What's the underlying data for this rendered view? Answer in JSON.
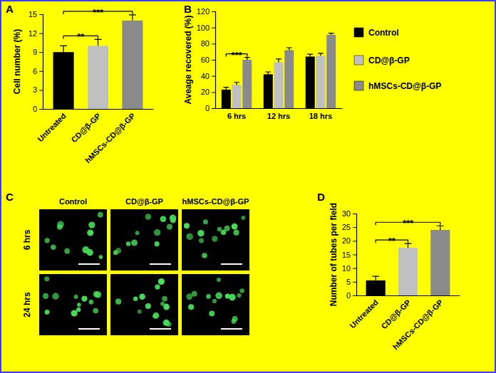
{
  "chart_data": [
    {
      "type": "bar",
      "panel": "A",
      "y_label": "Cell number (%)",
      "categories": [
        "Untreated",
        "CD@β-GP",
        "hMSCs-CD@β-GP"
      ],
      "values": [
        9,
        10,
        14
      ],
      "errors": [
        1,
        1,
        0.9
      ],
      "colors": [
        "#000000",
        "#c0c0c0",
        "#8a8a8a"
      ],
      "ylim": [
        0,
        15
      ],
      "yticks": [
        0,
        3,
        6,
        9,
        12,
        15
      ],
      "annotations": [
        {
          "text": "**",
          "from": 0,
          "to": 1
        },
        {
          "text": "***",
          "from": 0,
          "to": 2
        }
      ]
    },
    {
      "type": "bar",
      "panel": "B",
      "y_label": "Aveage recovered (%)",
      "categories": [
        "6 hrs",
        "12 hrs",
        "18 hrs"
      ],
      "series": [
        {
          "name": "Control",
          "color": "#000000",
          "values": [
            23,
            42,
            64
          ],
          "errors": [
            3,
            3,
            3
          ]
        },
        {
          "name": "CD@β-GP",
          "color": "#c0c0c0",
          "values": [
            29,
            57,
            65
          ],
          "errors": [
            3,
            4,
            3
          ]
        },
        {
          "name": "hMSCs-CD@β-GP",
          "color": "#8a8a8a",
          "values": [
            60,
            72,
            91
          ],
          "errors": [
            3,
            3,
            2
          ]
        }
      ],
      "ylim": [
        0,
        120
      ],
      "yticks": [
        0,
        20,
        40,
        60,
        80,
        100,
        120
      ],
      "legend": "right",
      "annotations": [
        {
          "text": "***",
          "category": 0,
          "from": 0,
          "to": 2
        }
      ]
    },
    {
      "type": "bar",
      "panel": "D",
      "y_label": "Number of tubes per field",
      "categories": [
        "Untreated",
        "CD@β-GP",
        "hMSCs-CD@β-GP"
      ],
      "values": [
        5.5,
        17.5,
        24
      ],
      "errors": [
        1.5,
        1.5,
        1.5
      ],
      "colors": [
        "#000000",
        "#c0c0c0",
        "#8a8a8a"
      ],
      "ylim": [
        0,
        30
      ],
      "yticks": [
        0,
        5,
        10,
        15,
        20,
        25,
        30
      ],
      "annotations": [
        {
          "text": "**",
          "from": 0,
          "to": 1
        },
        {
          "text": "***",
          "from": 0,
          "to": 2
        }
      ]
    }
  ],
  "image_panel": {
    "panel": "C",
    "columns": [
      "Control",
      "CD@β-GP",
      "hMSCs-CD@β-GP"
    ],
    "rows": [
      "6 hrs",
      "24 hrs"
    ]
  }
}
